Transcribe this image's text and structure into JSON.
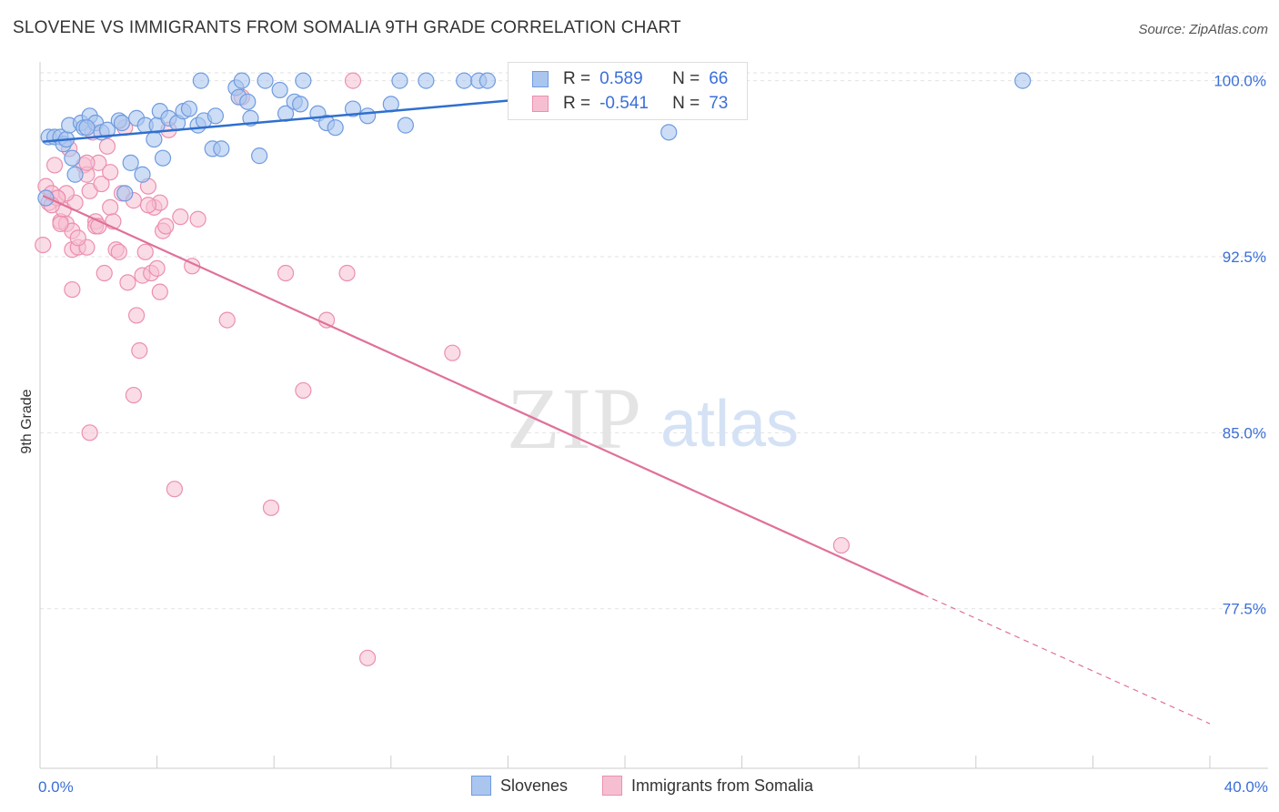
{
  "title": "SLOVENE VS IMMIGRANTS FROM SOMALIA 9TH GRADE CORRELATION CHART",
  "source": "Source: ZipAtlas.com",
  "watermark": {
    "zip": "ZIP",
    "atlas": "atlas"
  },
  "legend": {
    "r_label": "R =",
    "n_label": "N =",
    "series1": {
      "r": "0.589",
      "n": "66"
    },
    "series2": {
      "r": "-0.541",
      "n": "73"
    }
  },
  "bottom_legend": {
    "series1": "Slovenes",
    "series2": "Immigrants from Somalia"
  },
  "colors": {
    "blue_fill": "#aac6ef",
    "blue_stroke": "#6f9be0",
    "blue_line": "#2f6fcf",
    "pink_fill": "#f6bfd1",
    "pink_stroke": "#ec8fae",
    "pink_line": "#e0709a",
    "tick_label": "#3a6fd8"
  },
  "chart_data": {
    "type": "scatter",
    "title": "SLOVENE VS IMMIGRANTS FROM SOMALIA 9TH GRADE CORRELATION CHART",
    "xlabel": "",
    "ylabel": "9th Grade",
    "xlim": [
      0,
      40
    ],
    "ylim": [
      70.7,
      100.8
    ],
    "x_tick_labels": [
      "0.0%",
      "40.0%"
    ],
    "y_ticks": [
      100.0,
      92.5,
      85.0,
      77.5
    ],
    "y_tick_labels": [
      "100.0%",
      "92.5%",
      "85.0%",
      "77.5%"
    ],
    "grid": true,
    "series": [
      {
        "name": "Slovenes",
        "r": 0.589,
        "n": 66,
        "trend": {
          "x0": 0.1,
          "y0": 97.4,
          "x1": 23.3,
          "y1": 99.95
        },
        "points": [
          [
            0.2,
            95.0
          ],
          [
            0.3,
            97.6
          ],
          [
            0.5,
            97.6
          ],
          [
            0.7,
            97.6
          ],
          [
            0.8,
            97.3
          ],
          [
            0.9,
            97.5
          ],
          [
            1.0,
            98.1
          ],
          [
            1.1,
            96.7
          ],
          [
            1.2,
            96.0
          ],
          [
            1.4,
            98.2
          ],
          [
            1.5,
            98.0
          ],
          [
            1.7,
            98.5
          ],
          [
            1.9,
            98.2
          ],
          [
            2.1,
            97.8
          ],
          [
            2.3,
            97.9
          ],
          [
            2.7,
            98.3
          ],
          [
            2.8,
            98.2
          ],
          [
            3.1,
            96.5
          ],
          [
            3.3,
            98.4
          ],
          [
            3.6,
            98.1
          ],
          [
            3.9,
            97.5
          ],
          [
            4.0,
            98.1
          ],
          [
            4.1,
            98.7
          ],
          [
            4.4,
            98.4
          ],
          [
            4.7,
            98.2
          ],
          [
            4.9,
            98.7
          ],
          [
            5.1,
            98.8
          ],
          [
            5.4,
            98.1
          ],
          [
            5.6,
            98.3
          ],
          [
            5.9,
            97.1
          ],
          [
            6.0,
            98.5
          ],
          [
            6.2,
            97.1
          ],
          [
            6.7,
            99.7
          ],
          [
            6.8,
            99.3
          ],
          [
            7.1,
            99.1
          ],
          [
            7.2,
            98.4
          ],
          [
            7.5,
            96.8
          ],
          [
            7.7,
            100.0
          ],
          [
            8.2,
            99.6
          ],
          [
            8.4,
            98.6
          ],
          [
            8.7,
            99.1
          ],
          [
            8.9,
            99.0
          ],
          [
            9.0,
            100.0
          ],
          [
            9.5,
            98.6
          ],
          [
            9.8,
            98.2
          ],
          [
            10.1,
            98.0
          ],
          [
            10.7,
            98.8
          ],
          [
            11.2,
            98.5
          ],
          [
            12.0,
            99.0
          ],
          [
            12.3,
            100.0
          ],
          [
            12.5,
            98.1
          ],
          [
            13.2,
            100.0
          ],
          [
            14.5,
            100.0
          ],
          [
            15.0,
            100.0
          ],
          [
            15.3,
            100.0
          ],
          [
            17.9,
            100.0
          ],
          [
            21.5,
            97.8
          ],
          [
            23.0,
            99.8
          ],
          [
            23.5,
            100.0
          ],
          [
            33.6,
            100.0
          ],
          [
            4.2,
            96.7
          ],
          [
            2.9,
            95.2
          ],
          [
            3.5,
            96.0
          ],
          [
            6.9,
            100.0
          ],
          [
            5.5,
            100.0
          ],
          [
            1.6,
            98.0
          ]
        ]
      },
      {
        "name": "Immigrants from Somalia",
        "r": -0.541,
        "n": 73,
        "trend": {
          "x0": 0.1,
          "y0": 95.1,
          "x1": 30.2,
          "y1": 78.1
        },
        "trend_dashed": {
          "x0": 30.2,
          "y0": 78.1,
          "x1": 40.0,
          "y1": 72.6
        },
        "points": [
          [
            0.1,
            93.0
          ],
          [
            0.2,
            95.5
          ],
          [
            0.3,
            94.8
          ],
          [
            0.4,
            95.2
          ],
          [
            0.5,
            96.4
          ],
          [
            0.6,
            95.0
          ],
          [
            0.7,
            94.0
          ],
          [
            0.8,
            94.5
          ],
          [
            0.9,
            93.9
          ],
          [
            1.0,
            97.1
          ],
          [
            1.1,
            93.6
          ],
          [
            1.1,
            92.8
          ],
          [
            1.2,
            94.8
          ],
          [
            1.3,
            92.9
          ],
          [
            1.5,
            96.4
          ],
          [
            1.6,
            96.0
          ],
          [
            1.6,
            92.9
          ],
          [
            1.7,
            95.3
          ],
          [
            1.8,
            97.8
          ],
          [
            1.9,
            94.0
          ],
          [
            1.9,
            93.8
          ],
          [
            2.0,
            96.5
          ],
          [
            2.1,
            95.6
          ],
          [
            2.2,
            91.8
          ],
          [
            2.3,
            97.2
          ],
          [
            2.4,
            94.6
          ],
          [
            2.5,
            94.0
          ],
          [
            2.6,
            92.8
          ],
          [
            2.7,
            92.7
          ],
          [
            2.8,
            95.2
          ],
          [
            2.9,
            98.0
          ],
          [
            3.0,
            91.4
          ],
          [
            3.2,
            94.9
          ],
          [
            3.3,
            90.0
          ],
          [
            3.4,
            88.5
          ],
          [
            3.5,
            91.7
          ],
          [
            3.6,
            92.7
          ],
          [
            3.7,
            95.5
          ],
          [
            3.8,
            91.8
          ],
          [
            3.9,
            94.6
          ],
          [
            4.0,
            92.0
          ],
          [
            4.1,
            94.8
          ],
          [
            4.2,
            93.6
          ],
          [
            4.3,
            93.8
          ],
          [
            4.4,
            97.9
          ],
          [
            4.6,
            82.6
          ],
          [
            4.8,
            94.2
          ],
          [
            5.2,
            92.1
          ],
          [
            5.4,
            94.1
          ],
          [
            6.4,
            89.8
          ],
          [
            6.9,
            99.3
          ],
          [
            7.9,
            81.8
          ],
          [
            8.4,
            91.8
          ],
          [
            9.0,
            86.8
          ],
          [
            9.8,
            89.8
          ],
          [
            10.5,
            91.8
          ],
          [
            10.7,
            100.0
          ],
          [
            11.2,
            75.4
          ],
          [
            14.1,
            88.4
          ],
          [
            27.4,
            80.2
          ],
          [
            3.2,
            86.6
          ],
          [
            1.7,
            85.0
          ],
          [
            1.1,
            91.1
          ],
          [
            1.3,
            93.3
          ],
          [
            2.0,
            93.8
          ],
          [
            4.1,
            91.0
          ],
          [
            0.9,
            95.2
          ],
          [
            0.6,
            95.0
          ],
          [
            0.4,
            94.7
          ],
          [
            0.7,
            93.9
          ],
          [
            1.6,
            96.5
          ],
          [
            2.4,
            96.1
          ],
          [
            3.7,
            94.7
          ]
        ]
      }
    ]
  }
}
